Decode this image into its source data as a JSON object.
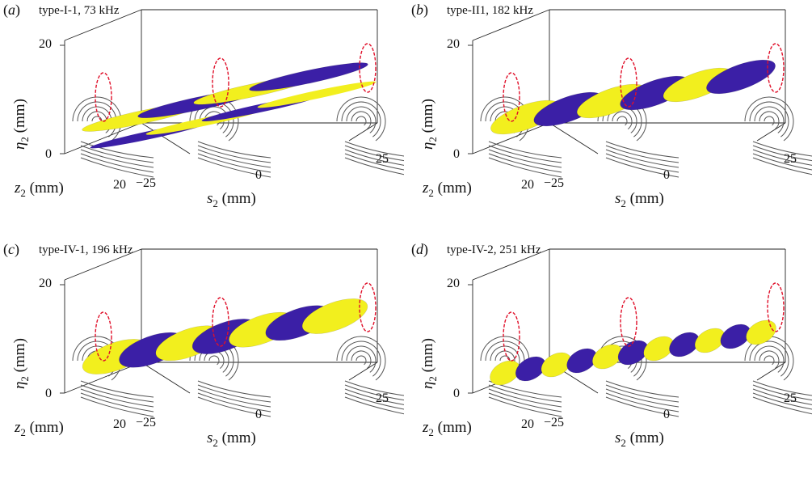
{
  "figure": {
    "panels": [
      {
        "letter": "a",
        "title": "type-I-1, 73 kHz",
        "eta_axis": {
          "symbol": "η",
          "subscript": "2",
          "unit": "(mm)",
          "ticks": [
            "0",
            "20"
          ]
        },
        "s_axis": {
          "symbol": "s",
          "subscript": "2",
          "unit": "(mm)",
          "ticks": [
            "−25",
            "0",
            "25"
          ]
        },
        "z_axis": {
          "symbol": "z",
          "subscript": "2",
          "unit": "(mm)",
          "ticks": [
            "20"
          ]
        },
        "colors": {
          "positive": "#f2ef1e",
          "negative": "#3b1fa6",
          "contour": "#555555",
          "boundary": "#e0102a"
        },
        "style": "long"
      },
      {
        "letter": "b",
        "title": "type-II1, 182 kHz",
        "eta_axis": {
          "symbol": "η",
          "subscript": "2",
          "unit": "(mm)",
          "ticks": [
            "0",
            "20"
          ]
        },
        "s_axis": {
          "symbol": "s",
          "subscript": "2",
          "unit": "(mm)",
          "ticks": [
            "−25",
            "0",
            "25"
          ]
        },
        "z_axis": {
          "symbol": "z",
          "subscript": "2",
          "unit": "(mm)",
          "ticks": [
            "20"
          ]
        },
        "colors": {
          "positive": "#f2ef1e",
          "negative": "#3b1fa6",
          "contour": "#555555",
          "boundary": "#e0102a"
        },
        "style": "helix"
      },
      {
        "letter": "c",
        "title": "type-IV-1, 196 kHz",
        "eta_axis": {
          "symbol": "η",
          "subscript": "2",
          "unit": "(mm)",
          "ticks": [
            "0",
            "20"
          ]
        },
        "s_axis": {
          "symbol": "s",
          "subscript": "2",
          "unit": "(mm)",
          "ticks": [
            "−25",
            "0",
            "25"
          ]
        },
        "z_axis": {
          "symbol": "z",
          "subscript": "2",
          "unit": "(mm)",
          "ticks": [
            "20"
          ]
        },
        "colors": {
          "positive": "#f2ef1e",
          "negative": "#3b1fa6",
          "contour": "#555555",
          "boundary": "#e0102a"
        },
        "style": "helix-fat"
      },
      {
        "letter": "d",
        "title": "type-IV-2, 251 kHz",
        "eta_axis": {
          "symbol": "η",
          "subscript": "2",
          "unit": "(mm)",
          "ticks": [
            "0",
            "20"
          ]
        },
        "s_axis": {
          "symbol": "s",
          "subscript": "2",
          "unit": "(mm)",
          "ticks": [
            "−25",
            "0",
            "25"
          ]
        },
        "z_axis": {
          "symbol": "z",
          "subscript": "2",
          "unit": "(mm)",
          "ticks": [
            "20"
          ]
        },
        "colors": {
          "positive": "#f2ef1e",
          "negative": "#3b1fa6",
          "contour": "#555555",
          "boundary": "#e0102a"
        },
        "style": "lobes"
      }
    ]
  }
}
